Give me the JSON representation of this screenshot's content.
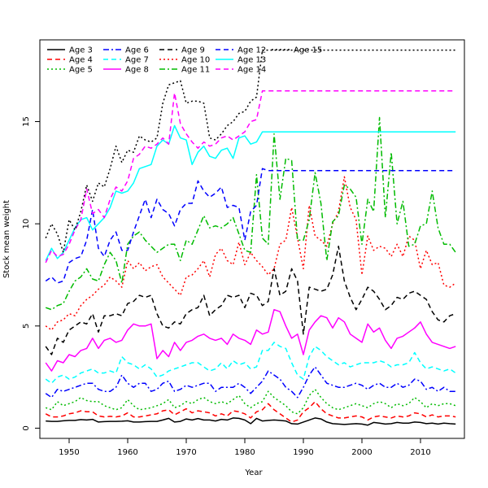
{
  "chart_data": {
    "type": "line",
    "title": "",
    "xlabel": "Year",
    "ylabel": "Stock mean weight",
    "xlim": [
      1945,
      2017.5
    ],
    "ylim": [
      -0.5,
      19.0
    ],
    "x_ticks": [
      1950,
      1960,
      1970,
      1980,
      1990,
      2000,
      2010
    ],
    "y_ticks": [
      0,
      5,
      10,
      15
    ],
    "legend_position": "top-left",
    "x": [
      1946,
      1947,
      1948,
      1949,
      1950,
      1951,
      1952,
      1953,
      1954,
      1955,
      1956,
      1957,
      1958,
      1959,
      1960,
      1961,
      1962,
      1963,
      1964,
      1965,
      1966,
      1967,
      1968,
      1969,
      1970,
      1971,
      1972,
      1973,
      1974,
      1975,
      1976,
      1977,
      1978,
      1979,
      1980,
      1981,
      1982,
      1983,
      1984,
      1985,
      1986,
      1987,
      1988,
      1989,
      1990,
      1991,
      1992,
      1993,
      1994,
      1995,
      1996,
      1997,
      1998,
      1999,
      2000,
      2001,
      2002,
      2003,
      2004,
      2005,
      2006,
      2007,
      2008,
      2009,
      2010,
      2011,
      2012,
      2013,
      2014,
      2015,
      2016
    ],
    "series": [
      {
        "name": "Age 3",
        "color": "#000000",
        "dash": "solid",
        "values": [
          0.35,
          0.33,
          0.33,
          0.36,
          0.38,
          0.38,
          0.42,
          0.4,
          0.43,
          0.3,
          0.32,
          0.33,
          0.33,
          0.34,
          0.36,
          0.3,
          0.3,
          0.32,
          0.33,
          0.33,
          0.4,
          0.48,
          0.3,
          0.33,
          0.45,
          0.4,
          0.47,
          0.4,
          0.4,
          0.35,
          0.43,
          0.4,
          0.5,
          0.48,
          0.4,
          0.22,
          0.48,
          0.35,
          0.38,
          0.4,
          0.38,
          0.35,
          0.22,
          0.2,
          0.3,
          0.4,
          0.5,
          0.45,
          0.3,
          0.22,
          0.2,
          0.18,
          0.2,
          0.22,
          0.2,
          0.15,
          0.28,
          0.25,
          0.2,
          0.22,
          0.28,
          0.25,
          0.25,
          0.3,
          0.28,
          0.22,
          0.25,
          0.2,
          0.25,
          0.22,
          0.2
        ]
      },
      {
        "name": "Age 4",
        "color": "#ff0000",
        "dash": "dashed",
        "values": [
          0.7,
          0.55,
          0.55,
          0.6,
          0.7,
          0.75,
          0.85,
          0.8,
          0.8,
          0.6,
          0.55,
          0.58,
          0.55,
          0.6,
          0.75,
          0.55,
          0.55,
          0.6,
          0.65,
          0.7,
          0.85,
          0.9,
          0.65,
          0.8,
          0.95,
          0.75,
          0.85,
          0.8,
          0.75,
          0.6,
          0.7,
          0.6,
          0.85,
          0.8,
          0.7,
          0.5,
          0.8,
          0.9,
          1.2,
          0.9,
          0.7,
          0.5,
          0.3,
          0.4,
          0.8,
          1.0,
          1.3,
          0.95,
          0.7,
          0.6,
          0.5,
          0.5,
          0.55,
          0.6,
          0.55,
          0.4,
          0.55,
          0.6,
          0.55,
          0.5,
          0.6,
          0.55,
          0.6,
          0.75,
          0.7,
          0.55,
          0.65,
          0.55,
          0.6,
          0.6,
          0.55
        ]
      },
      {
        "name": "Age 5",
        "color": "#00bb00",
        "dash": "dotted",
        "values": [
          1.0,
          0.9,
          1.3,
          1.1,
          1.2,
          1.3,
          1.5,
          1.35,
          1.3,
          1.3,
          1.1,
          1.0,
          0.9,
          1.0,
          1.4,
          1.1,
          0.9,
          0.95,
          1.0,
          1.1,
          1.2,
          1.4,
          1.0,
          1.1,
          1.3,
          1.2,
          1.4,
          1.5,
          1.3,
          1.2,
          1.3,
          1.2,
          1.4,
          1.6,
          1.2,
          1.0,
          1.2,
          1.3,
          1.8,
          1.5,
          1.3,
          1.1,
          0.8,
          0.7,
          1.0,
          1.6,
          1.9,
          1.5,
          1.2,
          1.0,
          0.9,
          1.0,
          1.1,
          1.2,
          1.1,
          1.0,
          1.2,
          1.3,
          1.2,
          1.0,
          1.2,
          1.1,
          1.2,
          1.5,
          1.3,
          1.0,
          1.2,
          1.1,
          1.2,
          1.2,
          1.1
        ]
      },
      {
        "name": "Age 6",
        "color": "#0000ff",
        "dash": "dashdot",
        "values": [
          1.7,
          1.5,
          1.9,
          1.8,
          1.9,
          2.0,
          2.1,
          2.2,
          2.2,
          1.9,
          1.8,
          1.8,
          2.0,
          2.6,
          2.2,
          2.0,
          2.2,
          2.2,
          1.8,
          1.9,
          2.2,
          2.3,
          1.8,
          1.9,
          2.1,
          2.0,
          2.1,
          2.2,
          2.2,
          1.8,
          2.0,
          2.0,
          2.0,
          2.2,
          2.0,
          1.7,
          2.0,
          2.3,
          2.8,
          2.6,
          2.4,
          2.0,
          1.8,
          1.5,
          2.0,
          2.6,
          3.0,
          2.6,
          2.2,
          2.1,
          2.0,
          2.0,
          2.1,
          2.2,
          2.1,
          1.9,
          2.1,
          2.2,
          2.0,
          2.0,
          2.2,
          2.0,
          2.1,
          2.4,
          2.3,
          1.9,
          2.0,
          1.8,
          2.0,
          1.8,
          1.8
        ]
      },
      {
        "name": "Age 7",
        "color": "#00ffff",
        "dash": "dashed",
        "values": [
          2.4,
          2.2,
          2.5,
          2.6,
          2.4,
          2.5,
          2.7,
          2.8,
          2.9,
          2.7,
          2.7,
          2.8,
          2.7,
          3.5,
          3.2,
          3.1,
          2.9,
          3.1,
          2.9,
          2.5,
          2.6,
          2.8,
          2.9,
          3.0,
          3.1,
          3.2,
          3.2,
          3.0,
          2.8,
          2.9,
          3.2,
          2.9,
          3.3,
          3.1,
          3.2,
          2.9,
          3.0,
          3.8,
          3.8,
          4.2,
          4.0,
          3.9,
          3.2,
          2.6,
          2.4,
          3.5,
          4.0,
          3.8,
          3.5,
          3.3,
          3.1,
          3.2,
          3.0,
          3.1,
          3.2,
          3.2,
          3.2,
          3.3,
          3.2,
          3.0,
          3.1,
          3.1,
          3.2,
          3.7,
          3.2,
          2.9,
          3.0,
          2.9,
          2.8,
          2.9,
          2.7
        ]
      },
      {
        "name": "Age 8",
        "color": "#ff00ff",
        "dash": "solid",
        "values": [
          3.2,
          2.8,
          3.3,
          3.2,
          3.6,
          3.5,
          3.8,
          3.9,
          4.4,
          3.9,
          4.3,
          4.4,
          4.2,
          4.3,
          4.8,
          5.1,
          5.0,
          5.0,
          5.1,
          3.4,
          3.8,
          3.5,
          4.2,
          3.8,
          4.2,
          4.3,
          4.5,
          4.6,
          4.4,
          4.3,
          4.4,
          4.1,
          4.6,
          4.4,
          4.3,
          4.1,
          4.8,
          4.6,
          4.7,
          5.8,
          5.7,
          5.0,
          4.4,
          4.6,
          3.6,
          4.8,
          5.2,
          5.5,
          5.4,
          4.9,
          5.4,
          5.2,
          4.6,
          4.4,
          4.2,
          5.1,
          4.7,
          4.9,
          4.3,
          3.9,
          4.4,
          4.5,
          4.7,
          4.9,
          5.2,
          4.6,
          4.2,
          4.1,
          4.0,
          3.9,
          4.0
        ]
      },
      {
        "name": "Age 9",
        "color": "#000000",
        "dash": "dashed",
        "values": [
          4.0,
          3.6,
          4.4,
          4.2,
          4.8,
          5.0,
          5.2,
          5.1,
          5.6,
          4.7,
          5.5,
          5.5,
          5.6,
          5.5,
          6.1,
          6.2,
          6.5,
          6.4,
          6.5,
          5.6,
          5.0,
          4.9,
          5.2,
          5.1,
          5.6,
          5.8,
          5.9,
          6.5,
          5.5,
          5.8,
          6.0,
          6.5,
          6.4,
          6.5,
          5.9,
          6.6,
          6.5,
          6.0,
          6.2,
          7.8,
          6.5,
          6.7,
          7.8,
          7.2,
          4.6,
          6.9,
          6.8,
          6.7,
          6.8,
          7.5,
          8.9,
          7.2,
          6.4,
          5.8,
          6.3,
          6.9,
          6.7,
          6.3,
          5.8,
          6.0,
          6.4,
          6.3,
          6.6,
          6.7,
          6.5,
          6.3,
          5.7,
          5.3,
          5.2,
          5.5,
          5.6
        ]
      },
      {
        "name": "Age 10",
        "color": "#ff0000",
        "dash": "dotted",
        "values": [
          5.0,
          4.8,
          5.2,
          5.3,
          5.6,
          5.5,
          6.0,
          6.3,
          6.5,
          6.8,
          7.0,
          7.4,
          7.2,
          6.9,
          8.2,
          7.8,
          8.1,
          7.7,
          7.9,
          8.0,
          7.4,
          7.1,
          6.8,
          6.5,
          7.4,
          7.5,
          7.8,
          8.2,
          7.4,
          8.5,
          8.8,
          8.2,
          8.0,
          9.1,
          8.0,
          8.6,
          8.2,
          7.9,
          7.5,
          7.8,
          9.0,
          9.2,
          10.8,
          9.3,
          7.8,
          10.9,
          9.4,
          9.2,
          8.9,
          10.0,
          10.6,
          12.3,
          10.8,
          10.2,
          7.5,
          9.4,
          8.7,
          8.9,
          8.8,
          8.4,
          9.0,
          8.4,
          9.4,
          9.2,
          7.8,
          8.7,
          8.0,
          8.1,
          7.0,
          6.9,
          7.1
        ]
      },
      {
        "name": "Age 11",
        "color": "#00bb00",
        "dash": "dashdot",
        "values": [
          5.9,
          5.8,
          6.0,
          6.1,
          6.7,
          7.2,
          7.4,
          7.8,
          7.3,
          7.2,
          8.0,
          8.6,
          8.2,
          7.1,
          9.0,
          9.4,
          9.6,
          9.2,
          8.9,
          8.6,
          8.8,
          9.0,
          9.0,
          8.2,
          9.2,
          9.0,
          9.7,
          10.4,
          9.8,
          9.9,
          9.8,
          10.0,
          10.3,
          9.5,
          8.7,
          8.6,
          12.4,
          9.3,
          9.0,
          14.4,
          11.2,
          13.2,
          13.1,
          9.2,
          9.2,
          10.2,
          12.5,
          11.0,
          8.2,
          10.1,
          10.4,
          11.9,
          11.7,
          11.3,
          9.0,
          11.2,
          10.6,
          15.2,
          10.3,
          13.5,
          10.0,
          11.1,
          8.9,
          9.0,
          9.9,
          10.0,
          11.6,
          9.8,
          9.0,
          9.0,
          8.6
        ]
      },
      {
        "name": "Age 12",
        "color": "#0000ff",
        "dash": "dashed",
        "values": [
          7.2,
          7.4,
          7.1,
          7.2,
          8.1,
          8.3,
          8.4,
          9.2,
          10.7,
          8.8,
          8.4,
          9.2,
          9.6,
          8.7,
          8.7,
          9.6,
          10.4,
          11.2,
          10.3,
          11.2,
          10.7,
          10.5,
          9.9,
          10.7,
          11.0,
          11.0,
          12.1,
          11.6,
          11.3,
          11.5,
          11.8,
          10.8,
          10.9,
          10.8,
          9.2,
          10.6,
          10.9,
          12.7,
          12.6,
          12.6,
          12.6,
          12.6,
          12.6,
          12.6,
          12.6,
          12.6,
          12.6,
          12.6,
          12.6,
          12.6,
          12.6,
          12.6,
          12.6,
          12.6,
          12.6,
          12.6,
          12.6,
          12.6,
          12.6,
          12.6,
          12.6,
          12.6,
          12.6,
          12.6,
          12.6,
          12.6,
          12.6,
          12.6,
          12.6,
          12.6,
          12.6
        ]
      },
      {
        "name": "Age 13",
        "color": "#00ffff",
        "dash": "solid",
        "values": [
          8.2,
          8.8,
          8.3,
          8.6,
          9.2,
          9.8,
          10.2,
          10.3,
          9.7,
          10.0,
          10.3,
          10.8,
          11.6,
          11.5,
          11.6,
          12.0,
          12.7,
          12.8,
          12.9,
          13.8,
          14.1,
          13.9,
          14.8,
          14.2,
          14.1,
          12.9,
          13.5,
          13.8,
          13.3,
          13.2,
          13.6,
          13.7,
          13.2,
          14.2,
          14.3,
          13.9,
          14.0,
          14.5,
          14.5,
          14.5,
          14.5,
          14.5,
          14.5,
          14.5,
          14.5,
          14.5,
          14.5,
          14.5,
          14.5,
          14.5,
          14.5,
          14.5,
          14.5,
          14.5,
          14.5,
          14.5,
          14.5,
          14.5,
          14.5,
          14.5,
          14.5,
          14.5,
          14.5,
          14.5,
          14.5,
          14.5,
          14.5,
          14.5,
          14.5,
          14.5,
          14.5
        ]
      },
      {
        "name": "Age 14",
        "color": "#ff00ff",
        "dash": "dashed",
        "values": [
          8.1,
          8.7,
          8.4,
          8.5,
          9.0,
          9.7,
          10.2,
          11.7,
          10.5,
          10.7,
          10.3,
          11.2,
          11.8,
          11.6,
          12.1,
          13.2,
          13.4,
          13.8,
          13.7,
          13.9,
          14.2,
          13.9,
          16.4,
          14.9,
          14.4,
          14.0,
          13.7,
          14.0,
          13.8,
          13.9,
          14.2,
          14.3,
          14.1,
          14.3,
          14.5,
          15.0,
          15.1,
          16.5,
          16.5,
          16.5,
          16.5,
          16.5,
          16.5,
          16.5,
          16.5,
          16.5,
          16.5,
          16.5,
          16.5,
          16.5,
          16.5,
          16.5,
          16.5,
          16.5,
          16.5,
          16.5,
          16.5,
          16.5,
          16.5,
          16.5,
          16.5,
          16.5,
          16.5,
          16.5,
          16.5,
          16.5,
          16.5,
          16.5,
          16.5,
          16.5,
          16.5
        ]
      },
      {
        "name": "Age 15",
        "color": "#000000",
        "dash": "dotted",
        "values": [
          9.3,
          10.0,
          9.5,
          8.6,
          10.2,
          9.7,
          10.6,
          11.9,
          11.1,
          12.0,
          11.8,
          12.7,
          13.8,
          13.0,
          13.6,
          13.5,
          14.3,
          14.1,
          14.0,
          14.2,
          15.9,
          16.8,
          16.9,
          17.0,
          15.9,
          16.0,
          16.0,
          15.9,
          14.2,
          14.1,
          14.4,
          14.8,
          15.0,
          15.4,
          15.5,
          16.0,
          16.2,
          18.5,
          18.5,
          18.5,
          18.5,
          18.5,
          18.5,
          18.5,
          18.5,
          18.5,
          18.5,
          18.5,
          18.5,
          18.5,
          18.5,
          18.5,
          18.5,
          18.5,
          18.5,
          18.5,
          18.5,
          18.5,
          18.5,
          18.5,
          18.5,
          18.5,
          18.5,
          18.5,
          18.5,
          18.5,
          18.5,
          18.5,
          18.5,
          18.5,
          18.5
        ]
      }
    ]
  }
}
